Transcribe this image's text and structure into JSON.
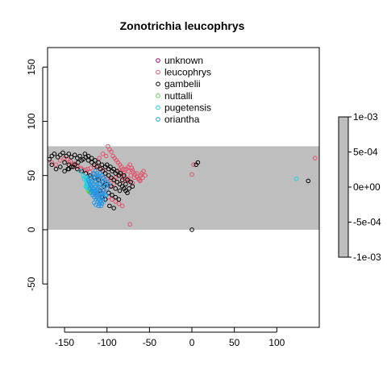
{
  "chart_data": {
    "type": "scatter",
    "title": "Zonotrichia leucophrys",
    "xlabel": "",
    "ylabel": "",
    "xlim": [
      -170,
      150
    ],
    "ylim": [
      -90,
      168
    ],
    "x_ticks": [
      -150,
      -100,
      -50,
      0,
      50,
      100
    ],
    "y_ticks": [
      -50,
      0,
      50,
      100,
      150
    ],
    "grid": false,
    "shaded_band": {
      "y_range": [
        0,
        77
      ],
      "color": "#bebebe"
    },
    "legend": {
      "placement": "top-center",
      "entries": [
        {
          "label": "unknown",
          "color": "#9e0277"
        },
        {
          "label": "leucophrys",
          "color": "#df536b"
        },
        {
          "label": "gambelii",
          "color": "#000000"
        },
        {
          "label": "nuttalli",
          "color": "#61d04f"
        },
        {
          "label": "pugetensis",
          "color": "#22d0e3"
        },
        {
          "label": "oriantha",
          "color": "#2297e6"
        }
      ]
    },
    "colorbar": {
      "placement": "right",
      "tick_labels": [
        "1e-03",
        "5e-04",
        "0e+00",
        "-5e-04",
        "-1e-03"
      ],
      "fill": "#bebebe"
    },
    "series": [
      {
        "name": "leucophrys",
        "color": "#df536b",
        "points": [
          [
            -165,
            62
          ],
          [
            -160,
            60
          ],
          [
            -155,
            64
          ],
          [
            -150,
            66
          ],
          [
            -145,
            62
          ],
          [
            -140,
            60
          ],
          [
            -135,
            58
          ],
          [
            -130,
            56
          ],
          [
            -125,
            55
          ],
          [
            -120,
            53
          ],
          [
            -115,
            52
          ],
          [
            -110,
            50
          ],
          [
            -105,
            48
          ],
          [
            -100,
            47
          ],
          [
            -95,
            46
          ],
          [
            -90,
            48
          ],
          [
            -85,
            50
          ],
          [
            -80,
            52
          ],
          [
            -75,
            54
          ],
          [
            -70,
            55
          ],
          [
            -65,
            52
          ],
          [
            -60,
            50
          ],
          [
            -58,
            48
          ],
          [
            -62,
            46
          ],
          [
            -68,
            48
          ],
          [
            -72,
            50
          ],
          [
            -78,
            47
          ],
          [
            -82,
            45
          ],
          [
            -88,
            44
          ],
          [
            -92,
            42
          ],
          [
            -96,
            40
          ],
          [
            -100,
            38
          ],
          [
            -104,
            36
          ],
          [
            -108,
            34
          ],
          [
            -112,
            32
          ],
          [
            -98,
            30
          ],
          [
            -94,
            28
          ],
          [
            -90,
            26
          ],
          [
            -86,
            24
          ],
          [
            -82,
            22
          ],
          [
            -99,
            77
          ],
          [
            -97,
            74
          ],
          [
            -95,
            72
          ],
          [
            -93,
            68
          ],
          [
            -91,
            66
          ],
          [
            -89,
            64
          ],
          [
            -87,
            62
          ],
          [
            -85,
            60
          ],
          [
            -83,
            58
          ],
          [
            -81,
            56
          ],
          [
            -79,
            55
          ],
          [
            -77,
            56
          ],
          [
            -75,
            58
          ],
          [
            -73,
            60
          ],
          [
            -71,
            57
          ],
          [
            -69,
            53
          ],
          [
            -67,
            51
          ],
          [
            -65,
            49
          ],
          [
            -63,
            47
          ],
          [
            -61,
            45
          ],
          [
            -59,
            52
          ],
          [
            -57,
            54
          ],
          [
            -55,
            50
          ],
          [
            -103,
            55
          ],
          [
            -107,
            57
          ],
          [
            -111,
            59
          ],
          [
            -115,
            58
          ],
          [
            -119,
            57
          ],
          [
            -123,
            56
          ],
          [
            -127,
            55
          ],
          [
            -131,
            57
          ],
          [
            -135,
            59
          ],
          [
            -139,
            61
          ],
          [
            -143,
            63
          ],
          [
            -147,
            65
          ],
          [
            -73,
            5
          ],
          [
            -101,
            68
          ],
          [
            -105,
            70
          ],
          [
            -109,
            66
          ],
          [
            0,
            51
          ],
          [
            2,
            60
          ],
          [
            145,
            66
          ],
          [
            -86,
            55
          ],
          [
            -84,
            53
          ],
          [
            -80,
            49
          ],
          [
            -76,
            47
          ],
          [
            -74,
            45
          ],
          [
            -70,
            43
          ]
        ]
      },
      {
        "name": "gambelii",
        "color": "#000000",
        "points": [
          [
            -168,
            65
          ],
          [
            -165,
            68
          ],
          [
            -162,
            70
          ],
          [
            -158,
            67
          ],
          [
            -155,
            69
          ],
          [
            -152,
            71
          ],
          [
            -148,
            68
          ],
          [
            -145,
            70
          ],
          [
            -142,
            67
          ],
          [
            -138,
            69
          ],
          [
            -135,
            66
          ],
          [
            -132,
            68
          ],
          [
            -128,
            65
          ],
          [
            -125,
            67
          ],
          [
            -122,
            64
          ],
          [
            -118,
            62
          ],
          [
            -115,
            60
          ],
          [
            -112,
            58
          ],
          [
            -108,
            56
          ],
          [
            -105,
            54
          ],
          [
            -102,
            52
          ],
          [
            -98,
            50
          ],
          [
            -95,
            48
          ],
          [
            -92,
            46
          ],
          [
            -88,
            44
          ],
          [
            -85,
            42
          ],
          [
            -82,
            40
          ],
          [
            -80,
            38
          ],
          [
            -78,
            36
          ],
          [
            -76,
            34
          ],
          [
            -85,
            36
          ],
          [
            -90,
            38
          ],
          [
            -95,
            40
          ],
          [
            -100,
            42
          ],
          [
            -105,
            44
          ],
          [
            -110,
            46
          ],
          [
            -115,
            48
          ],
          [
            -120,
            50
          ],
          [
            -125,
            52
          ],
          [
            -130,
            54
          ],
          [
            -135,
            56
          ],
          [
            -140,
            58
          ],
          [
            -145,
            60
          ],
          [
            -150,
            62
          ],
          [
            -155,
            58
          ],
          [
            -160,
            56
          ],
          [
            -165,
            60
          ],
          [
            -150,
            54
          ],
          [
            -145,
            56
          ],
          [
            -98,
            34
          ],
          [
            -94,
            32
          ],
          [
            -90,
            30
          ],
          [
            -86,
            28
          ],
          [
            -97,
            22
          ],
          [
            -92,
            20
          ],
          [
            -100,
            60
          ],
          [
            -96,
            58
          ],
          [
            -92,
            56
          ],
          [
            -88,
            54
          ],
          [
            -84,
            52
          ],
          [
            -80,
            50
          ],
          [
            -76,
            46
          ],
          [
            -72,
            44
          ],
          [
            -70,
            40
          ],
          [
            -74,
            38
          ],
          [
            -78,
            42
          ],
          [
            -82,
            46
          ],
          [
            -86,
            50
          ],
          [
            -90,
            52
          ],
          [
            -94,
            54
          ],
          [
            -98,
            56
          ],
          [
            -102,
            58
          ],
          [
            -106,
            60
          ],
          [
            -110,
            62
          ],
          [
            -114,
            64
          ],
          [
            -118,
            66
          ],
          [
            -122,
            68
          ],
          [
            -126,
            70
          ],
          [
            -130,
            64
          ],
          [
            -134,
            62
          ],
          [
            -138,
            60
          ],
          [
            -142,
            58
          ],
          [
            -146,
            56
          ],
          [
            0,
            0
          ],
          [
            5,
            60
          ],
          [
            7,
            62
          ],
          [
            137,
            45
          ],
          [
            -104,
            40
          ],
          [
            -108,
            36
          ],
          [
            -112,
            34
          ],
          [
            -106,
            30
          ],
          [
            -102,
            28
          ]
        ]
      },
      {
        "name": "nuttalli",
        "color": "#61d04f",
        "points": [
          [
            -122,
            38
          ],
          [
            -121,
            37
          ],
          [
            -123,
            39
          ],
          [
            -122,
            36
          ],
          [
            -121,
            35
          ],
          [
            -120,
            35
          ],
          [
            -122,
            40
          ]
        ]
      },
      {
        "name": "pugetensis",
        "color": "#22d0e3",
        "points": [
          [
            -124,
            48
          ],
          [
            -123,
            47
          ],
          [
            -125,
            46
          ],
          [
            -124,
            44
          ],
          [
            -123,
            43
          ],
          [
            -122,
            45
          ],
          [
            -124,
            42
          ],
          [
            -123,
            41
          ],
          [
            -125,
            40
          ],
          [
            -124,
            39
          ],
          [
            -122,
            38
          ],
          [
            -131,
            54
          ],
          [
            -128,
            50
          ],
          [
            -126,
            49
          ],
          [
            -127,
            47
          ],
          [
            123,
            47
          ]
        ]
      },
      {
        "name": "oriantha",
        "color": "#2297e6",
        "points": [
          [
            -118,
            40
          ],
          [
            -116,
            38
          ],
          [
            -114,
            36
          ],
          [
            -112,
            34
          ],
          [
            -110,
            32
          ],
          [
            -108,
            30
          ],
          [
            -106,
            28
          ],
          [
            -104,
            26
          ],
          [
            -120,
            42
          ],
          [
            -118,
            44
          ],
          [
            -116,
            46
          ],
          [
            -114,
            48
          ],
          [
            -112,
            50
          ],
          [
            -110,
            48
          ],
          [
            -108,
            46
          ],
          [
            -106,
            44
          ],
          [
            -104,
            42
          ],
          [
            -102,
            40
          ],
          [
            -100,
            38
          ],
          [
            -110,
            40
          ],
          [
            -112,
            42
          ],
          [
            -114,
            44
          ],
          [
            -116,
            42
          ],
          [
            -118,
            36
          ],
          [
            -116,
            34
          ],
          [
            -114,
            32
          ],
          [
            -112,
            30
          ],
          [
            -110,
            28
          ],
          [
            -108,
            26
          ],
          [
            -106,
            24
          ],
          [
            -120,
            38
          ],
          [
            -119,
            34
          ],
          [
            -117,
            32
          ],
          [
            -115,
            30
          ],
          [
            -113,
            28
          ],
          [
            -111,
            26
          ],
          [
            -109,
            24
          ],
          [
            -107,
            22
          ],
          [
            -105,
            36
          ],
          [
            -103,
            34
          ],
          [
            -101,
            32
          ],
          [
            -107,
            38
          ],
          [
            -109,
            42
          ],
          [
            -111,
            38
          ],
          [
            -113,
            40
          ],
          [
            -115,
            36
          ],
          [
            -117,
            38
          ],
          [
            -119,
            40
          ],
          [
            -121,
            44
          ],
          [
            -122,
            46
          ],
          [
            -120,
            48
          ],
          [
            -118,
            50
          ],
          [
            -116,
            52
          ],
          [
            -114,
            54
          ],
          [
            -112,
            52
          ],
          [
            -110,
            50
          ],
          [
            -108,
            52
          ],
          [
            -106,
            50
          ],
          [
            -104,
            48
          ],
          [
            -102,
            46
          ],
          [
            -100,
            44
          ],
          [
            -98,
            42
          ],
          [
            -112,
            36
          ],
          [
            -110,
            34
          ],
          [
            -108,
            32
          ],
          [
            -106,
            34
          ],
          [
            -104,
            30
          ],
          [
            -102,
            32
          ],
          [
            -115,
            25
          ],
          [
            -113,
            23
          ],
          [
            -110,
            22
          ]
        ]
      }
    ]
  }
}
